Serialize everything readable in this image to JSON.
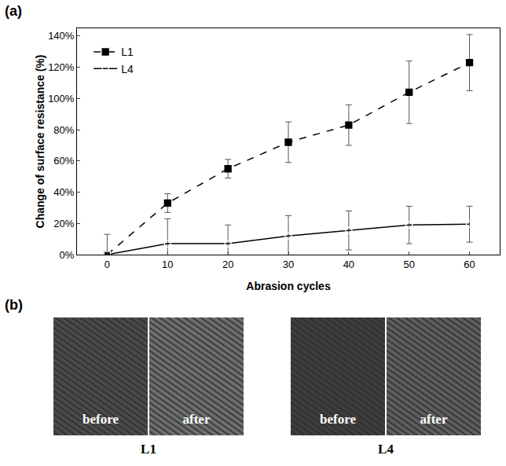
{
  "chart_data": {
    "type": "line",
    "x": [
      0,
      10,
      20,
      30,
      40,
      50,
      60
    ],
    "xlabel": "Abrasion cycles",
    "ylabel": "Change of surface resistance (%)",
    "xlim": [
      -5,
      65
    ],
    "xticks": [
      0,
      10,
      20,
      30,
      40,
      50,
      60
    ],
    "ylim": [
      0,
      145
    ],
    "yticks": [
      {
        "value": 0,
        "label": "0%"
      },
      {
        "value": 20,
        "label": "20%"
      },
      {
        "value": 40,
        "label": "40%"
      },
      {
        "value": 60,
        "label": "60%"
      },
      {
        "value": 80,
        "label": "80%"
      },
      {
        "value": 100,
        "label": "100%"
      },
      {
        "value": 120,
        "label": "120%"
      },
      {
        "value": 140,
        "label": "140%"
      }
    ],
    "grid": false,
    "legend": "top left",
    "series": [
      {
        "name": "L1",
        "color": "#000000",
        "marker": "square",
        "line_style": "dashed",
        "values": [
          0,
          33,
          55,
          72,
          83,
          104,
          123
        ],
        "error": [
          0,
          6,
          6,
          13,
          13,
          20,
          18
        ]
      },
      {
        "name": "L4",
        "color": "#000000",
        "marker": "square-open",
        "line_style": "solid",
        "values": [
          0,
          7,
          7,
          12,
          15.5,
          19,
          19.5
        ],
        "error": [
          13,
          16,
          12,
          13,
          12.5,
          12,
          11.5
        ]
      }
    ]
  },
  "panel_labels": [
    "(a)",
    "(b)"
  ],
  "images": [
    {
      "label": "L1",
      "parts": [
        "before",
        "after"
      ]
    },
    {
      "label": "L4",
      "parts": [
        "before",
        "after"
      ]
    }
  ]
}
